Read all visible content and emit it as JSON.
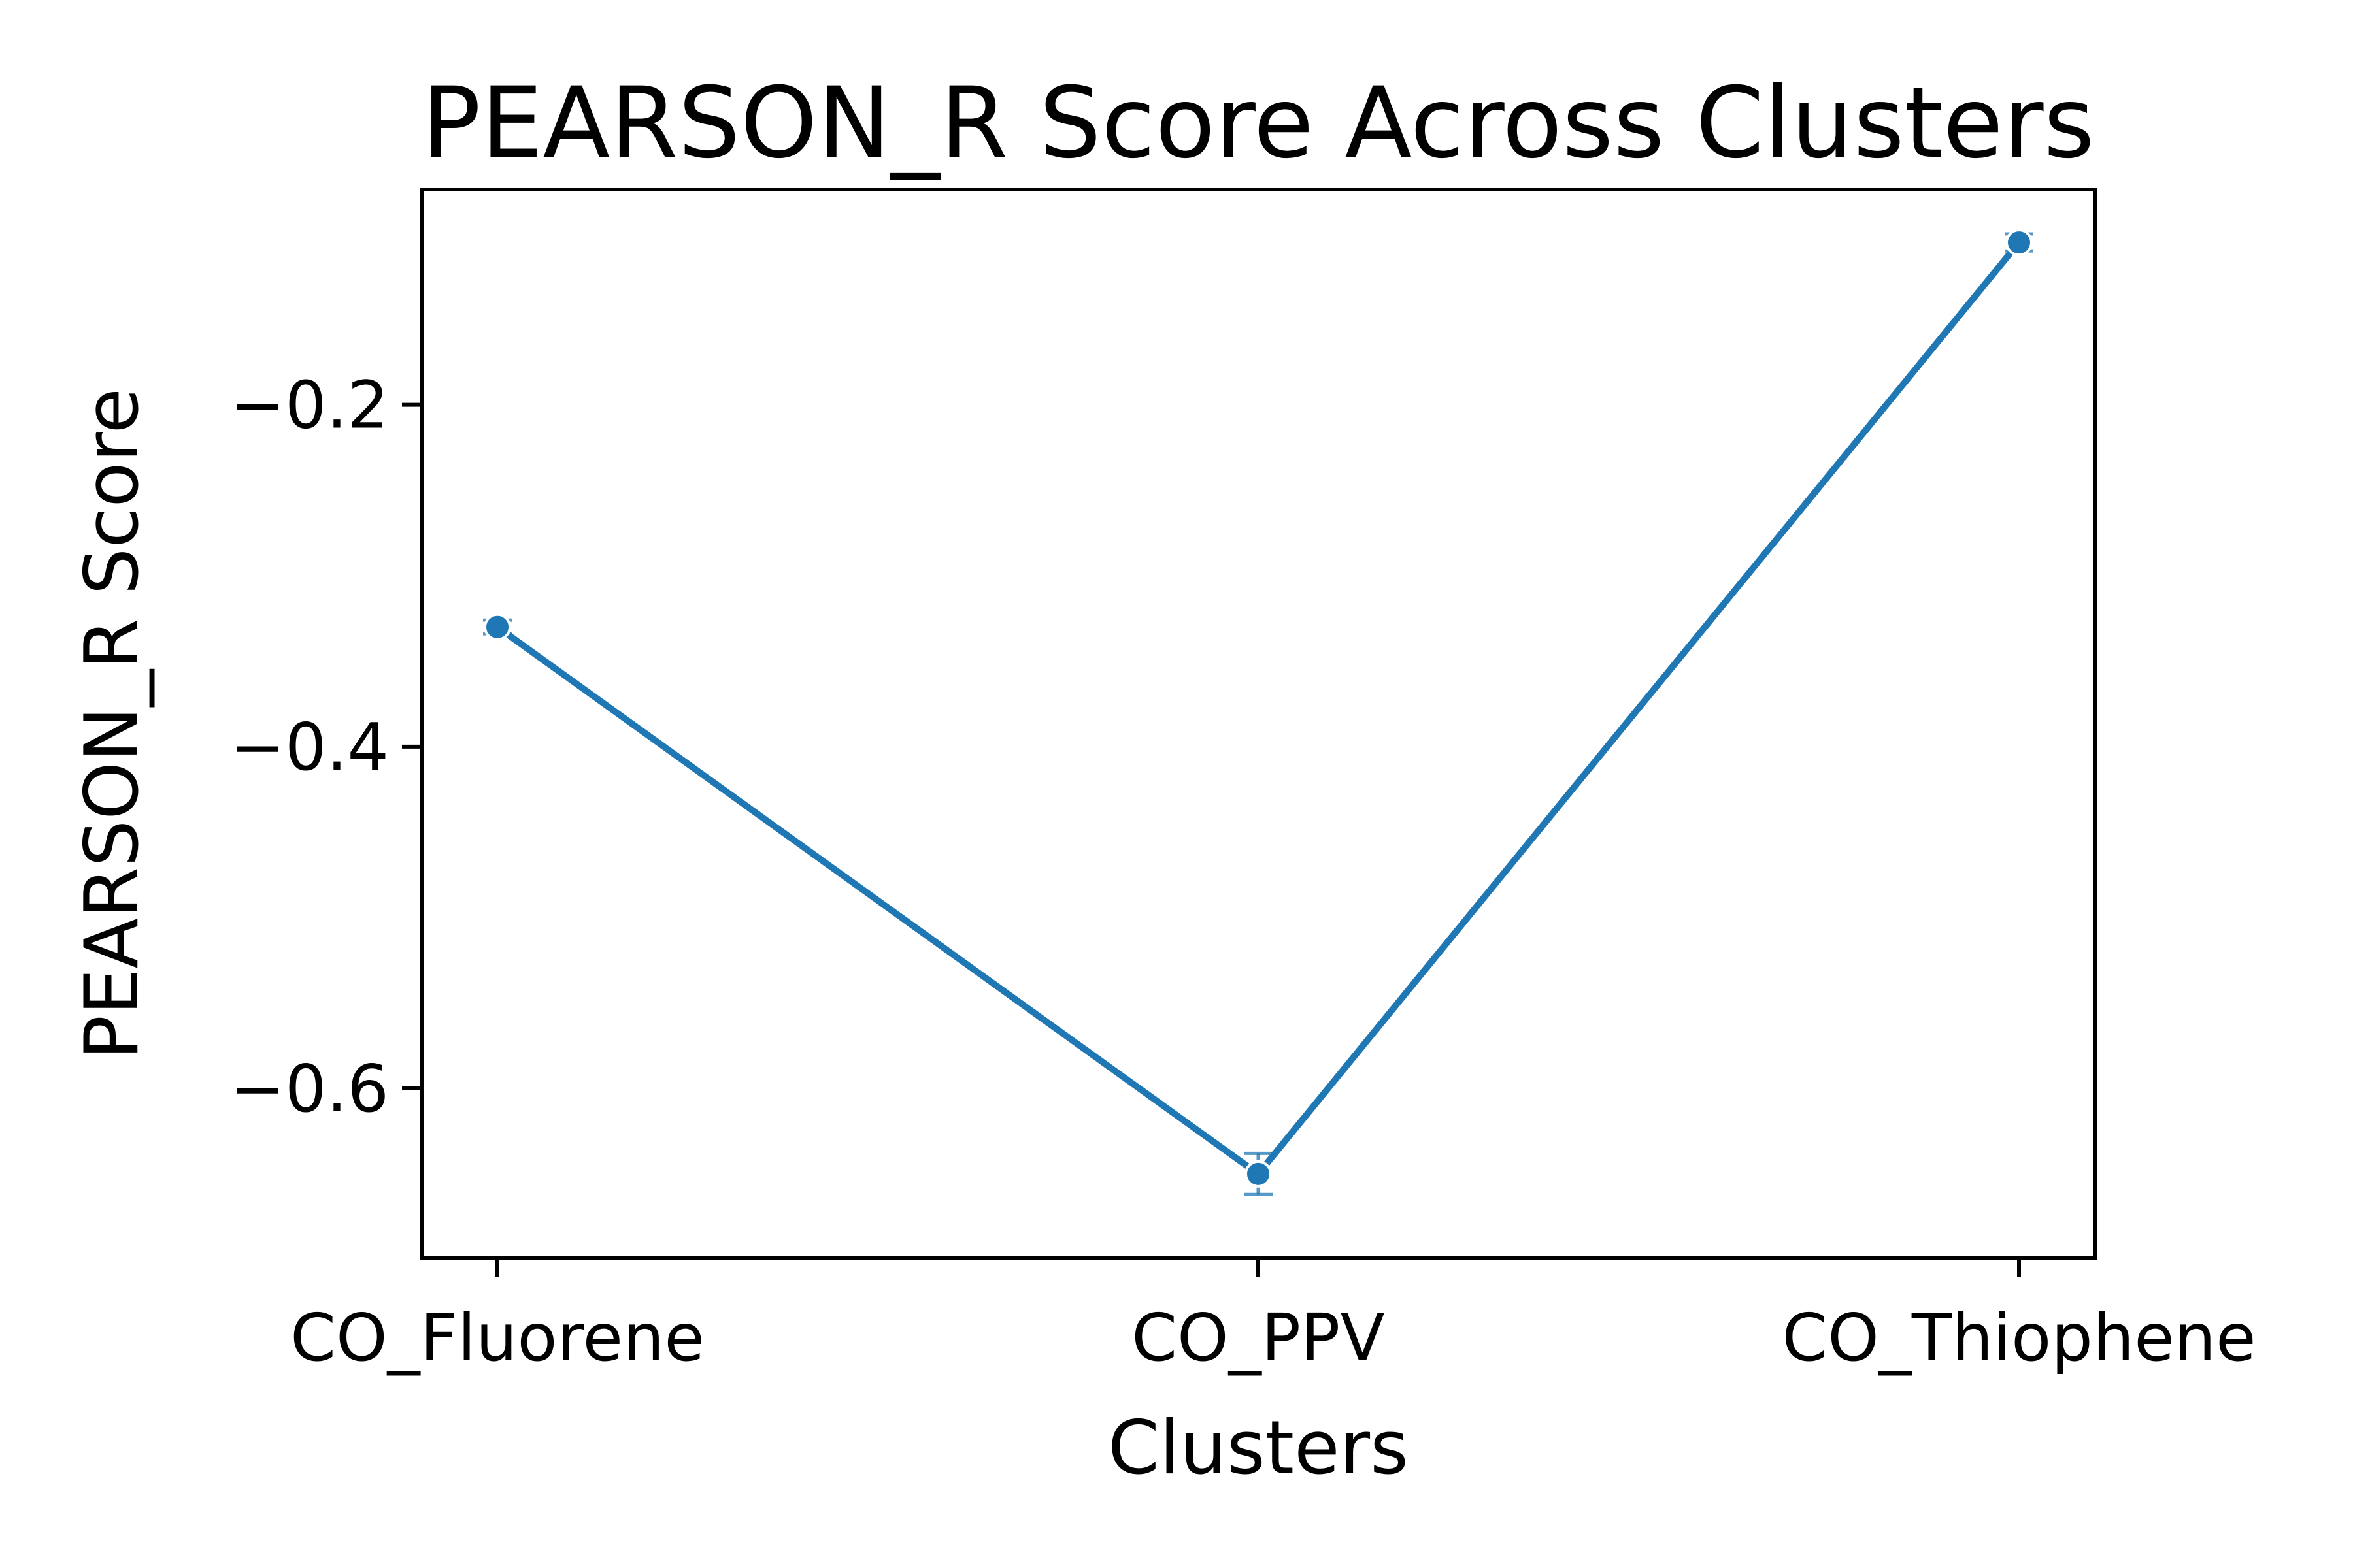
{
  "chart_data": {
    "type": "line",
    "title": "PEARSON_R Score Across Clusters",
    "xlabel": "Clusters",
    "ylabel": "PEARSON_R Score",
    "categories": [
      "CO_Fluorene",
      "CO_PPV",
      "CO_Thiophene"
    ],
    "series": [
      {
        "values": [
          -0.33,
          -0.65,
          -0.105
        ],
        "error": [
          0.004,
          0.012,
          0.005
        ],
        "color": "#1f77b4"
      }
    ],
    "yticks": [
      -0.2,
      -0.4,
      -0.6
    ],
    "ytick_labels": [
      "−0.2",
      "−0.4",
      "−0.6"
    ],
    "ylim": [
      -0.699,
      -0.074
    ],
    "grid": false,
    "legend": "none"
  }
}
